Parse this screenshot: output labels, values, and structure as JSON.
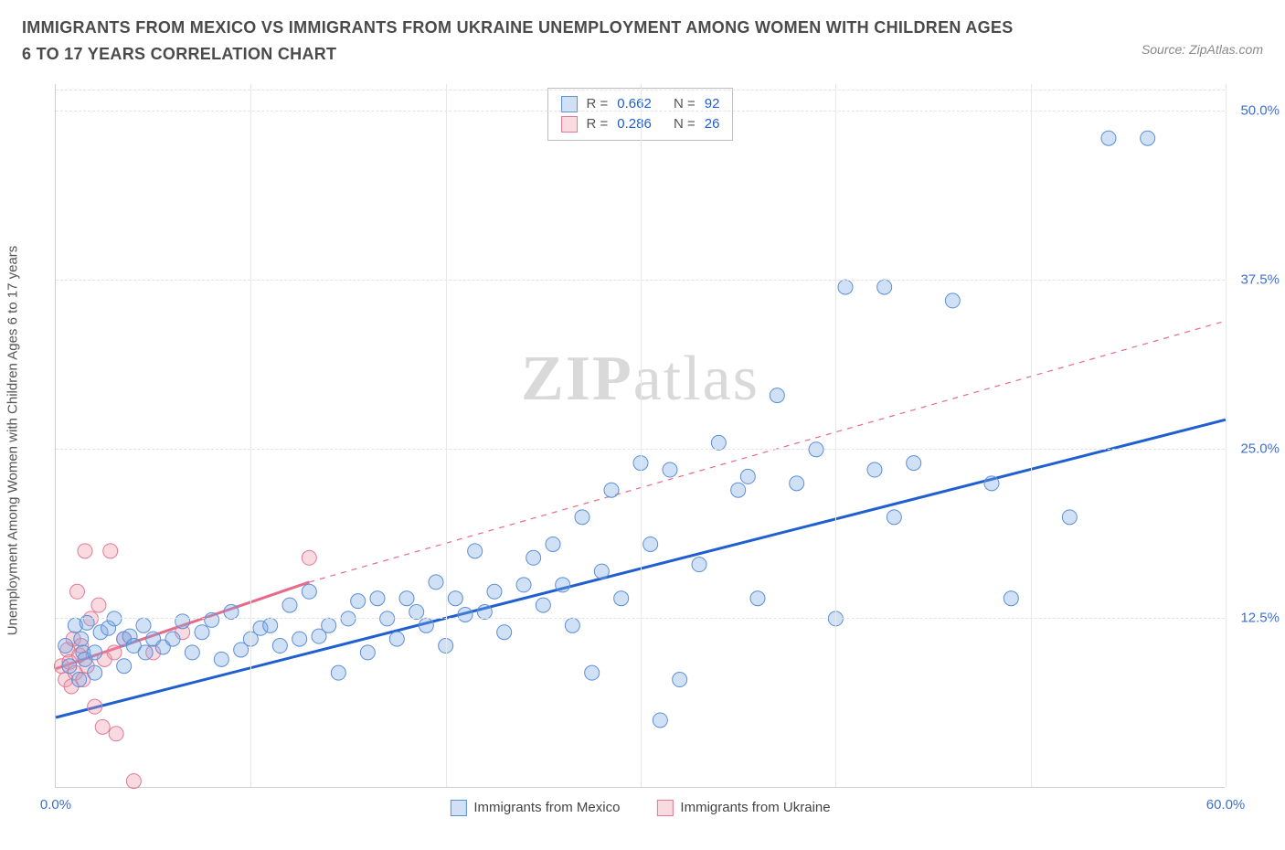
{
  "title": "IMMIGRANTS FROM MEXICO VS IMMIGRANTS FROM UKRAINE UNEMPLOYMENT AMONG WOMEN WITH CHILDREN AGES 6 TO 17 YEARS CORRELATION CHART",
  "source": "Source: ZipAtlas.com",
  "watermark": {
    "bold": "ZIP",
    "rest": "atlas"
  },
  "yaxis_title": "Unemployment Among Women with Children Ages 6 to 17 years",
  "chart": {
    "type": "scatter",
    "xlim": [
      0,
      60
    ],
    "ylim": [
      0,
      52
    ],
    "xticks": [
      0,
      10,
      20,
      30,
      40,
      50,
      60
    ],
    "xtick_labels": [
      "0.0%",
      "",
      "",
      "",
      "",
      "",
      "60.0%"
    ],
    "yticks": [
      12.5,
      25.0,
      37.5,
      50.0
    ],
    "ytick_labels": [
      "12.5%",
      "25.0%",
      "37.5%",
      "50.0%"
    ],
    "background": "#ffffff",
    "grid_color": "#e2e2e2",
    "marker_radius": 8,
    "series": {
      "mexico": {
        "label": "Immigrants from Mexico",
        "fill": "rgba(120,170,230,0.35)",
        "stroke": "#5b8fd6",
        "R": "0.662",
        "N": "92",
        "trend": {
          "x1": 0,
          "y1": 5.2,
          "x2": 60,
          "y2": 27.2,
          "color": "#1f5fd0",
          "width": 3
        },
        "points": [
          [
            0.5,
            10.5
          ],
          [
            0.7,
            9.0
          ],
          [
            1.0,
            12.0
          ],
          [
            1.2,
            8.0
          ],
          [
            1.3,
            11.0
          ],
          [
            1.4,
            10.0
          ],
          [
            1.5,
            9.5
          ],
          [
            1.6,
            12.2
          ],
          [
            2.0,
            8.5
          ],
          [
            2.0,
            10.0
          ],
          [
            2.3,
            11.5
          ],
          [
            2.7,
            11.8
          ],
          [
            3.0,
            12.5
          ],
          [
            3.5,
            9.0
          ],
          [
            3.5,
            11.0
          ],
          [
            3.8,
            11.2
          ],
          [
            4.0,
            10.5
          ],
          [
            4.5,
            12.0
          ],
          [
            4.6,
            10.0
          ],
          [
            5.0,
            11.0
          ],
          [
            5.5,
            10.4
          ],
          [
            6.0,
            11.0
          ],
          [
            6.5,
            12.3
          ],
          [
            7.0,
            10.0
          ],
          [
            7.5,
            11.5
          ],
          [
            8.0,
            12.4
          ],
          [
            8.5,
            9.5
          ],
          [
            9.0,
            13.0
          ],
          [
            9.5,
            10.2
          ],
          [
            10.0,
            11.0
          ],
          [
            10.5,
            11.8
          ],
          [
            11.0,
            12.0
          ],
          [
            11.5,
            10.5
          ],
          [
            12.0,
            13.5
          ],
          [
            12.5,
            11.0
          ],
          [
            13.0,
            14.5
          ],
          [
            13.5,
            11.2
          ],
          [
            14.0,
            12.0
          ],
          [
            14.5,
            8.5
          ],
          [
            15.0,
            12.5
          ],
          [
            15.5,
            13.8
          ],
          [
            16.0,
            10.0
          ],
          [
            16.5,
            14.0
          ],
          [
            17.0,
            12.5
          ],
          [
            17.5,
            11.0
          ],
          [
            18.0,
            14.0
          ],
          [
            18.5,
            13.0
          ],
          [
            19.0,
            12.0
          ],
          [
            19.5,
            15.2
          ],
          [
            20.0,
            10.5
          ],
          [
            20.5,
            14.0
          ],
          [
            21.0,
            12.8
          ],
          [
            21.5,
            17.5
          ],
          [
            22.0,
            13.0
          ],
          [
            22.5,
            14.5
          ],
          [
            23.0,
            11.5
          ],
          [
            24.0,
            15.0
          ],
          [
            24.5,
            17.0
          ],
          [
            25.0,
            13.5
          ],
          [
            25.5,
            18.0
          ],
          [
            26.0,
            15.0
          ],
          [
            26.5,
            12.0
          ],
          [
            27.0,
            20.0
          ],
          [
            27.5,
            8.5
          ],
          [
            28.0,
            16.0
          ],
          [
            28.5,
            22.0
          ],
          [
            29.0,
            14.0
          ],
          [
            30.0,
            24.0
          ],
          [
            30.5,
            18.0
          ],
          [
            31.0,
            5.0
          ],
          [
            31.5,
            23.5
          ],
          [
            32.0,
            8.0
          ],
          [
            33.0,
            16.5
          ],
          [
            34.0,
            25.5
          ],
          [
            35.0,
            22.0
          ],
          [
            35.5,
            23.0
          ],
          [
            36.0,
            14.0
          ],
          [
            37.0,
            29.0
          ],
          [
            38.0,
            22.5
          ],
          [
            39.0,
            25.0
          ],
          [
            40.0,
            12.5
          ],
          [
            40.5,
            37.0
          ],
          [
            42.0,
            23.5
          ],
          [
            42.5,
            37.0
          ],
          [
            43.0,
            20.0
          ],
          [
            44.0,
            24.0
          ],
          [
            46.0,
            36.0
          ],
          [
            48.0,
            22.5
          ],
          [
            49.0,
            14.0
          ],
          [
            52.0,
            20.0
          ],
          [
            54.0,
            48.0
          ],
          [
            56.0,
            48.0
          ]
        ]
      },
      "ukraine": {
        "label": "Immigrants from Ukraine",
        "fill": "rgba(240,150,170,0.35)",
        "stroke": "#e07a95",
        "R": "0.286",
        "N": "26",
        "trend_solid": {
          "x1": 0,
          "y1": 8.8,
          "x2": 13,
          "y2": 15.2
        },
        "trend_dash": {
          "x1": 13,
          "y1": 15.2,
          "x2": 60,
          "y2": 34.5
        },
        "trend_color": "#e86a8a",
        "points": [
          [
            0.3,
            9.0
          ],
          [
            0.5,
            8.0
          ],
          [
            0.6,
            10.2
          ],
          [
            0.7,
            9.3
          ],
          [
            0.8,
            7.5
          ],
          [
            0.9,
            11.0
          ],
          [
            1.0,
            8.5
          ],
          [
            1.1,
            14.5
          ],
          [
            1.2,
            9.8
          ],
          [
            1.3,
            10.5
          ],
          [
            1.4,
            8.0
          ],
          [
            1.5,
            17.5
          ],
          [
            1.6,
            9.0
          ],
          [
            1.8,
            12.5
          ],
          [
            2.0,
            6.0
          ],
          [
            2.2,
            13.5
          ],
          [
            2.4,
            4.5
          ],
          [
            2.5,
            9.5
          ],
          [
            2.8,
            17.5
          ],
          [
            3.0,
            10.0
          ],
          [
            3.1,
            4.0
          ],
          [
            3.5,
            11.0
          ],
          [
            4.0,
            0.5
          ],
          [
            5.0,
            10.0
          ],
          [
            6.5,
            11.5
          ],
          [
            13.0,
            17.0
          ]
        ]
      }
    }
  },
  "legend_stats": {
    "rows": [
      {
        "swatch": "mex",
        "R_label": "R =",
        "R": "0.662",
        "N_label": "N =",
        "N": "92"
      },
      {
        "swatch": "ukr",
        "R_label": "R =",
        "R": "0.286",
        "N_label": "N =",
        "N": "26"
      }
    ]
  }
}
